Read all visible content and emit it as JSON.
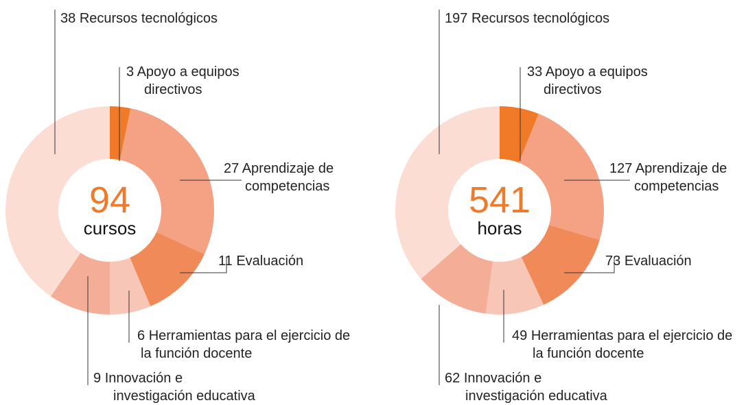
{
  "chart_data": [
    {
      "type": "donut",
      "center_value": 94,
      "center_label": "cursos",
      "categories": [
        "Apoyo a equipos directivos",
        "Aprendizaje de competencias",
        "Evaluación",
        "Herramientas para el ejercicio de la función docente",
        "Innovación e investigación educativa",
        "Recursos tecnológicos"
      ],
      "values": [
        3,
        27,
        11,
        6,
        9,
        38
      ],
      "colors": [
        "#f07a28",
        "#f4a283",
        "#f08a58",
        "#f8c6b6",
        "#f4ad97",
        "#fbddd3"
      ]
    },
    {
      "type": "donut",
      "center_value": 541,
      "center_label": "horas",
      "categories": [
        "Apoyo a equipos directivos",
        "Aprendizaje de competencias",
        "Evaluación",
        "Herramientas para el ejercicio de la función docente",
        "Innovación e investigación educativa",
        "Recursos tecnológicos"
      ],
      "values": [
        33,
        127,
        73,
        49,
        62,
        197
      ],
      "colors": [
        "#f07a28",
        "#f4a283",
        "#f08a58",
        "#f8c6b6",
        "#f4ad97",
        "#fbddd3"
      ]
    }
  ]
}
